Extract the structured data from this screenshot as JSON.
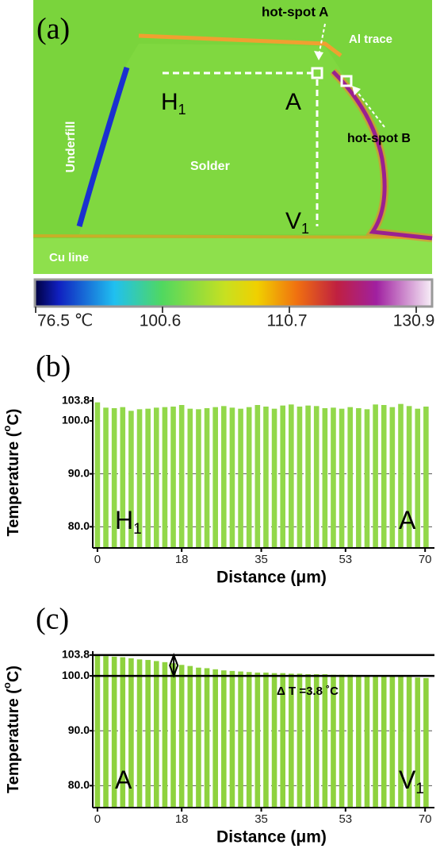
{
  "image_panel": {
    "panel_label": "(a)",
    "labels": {
      "hot_spot_a": "hot-spot A",
      "al_trace": "Al trace",
      "h1": {
        "text": "H",
        "sub": "1"
      },
      "a": "A",
      "hot_spot_b": "hot-spot B",
      "underfill": "Underfill",
      "solder": "Solder",
      "v1": {
        "text": "V",
        "sub": "1"
      },
      "cu_line": "Cu line"
    },
    "colorbar_ticks": [
      {
        "value": 76.5,
        "label": "76.5 ℃"
      },
      100.6,
      110.7,
      130.9
    ]
  },
  "chart_data": [
    {
      "type": "bar",
      "panel_label": "(b)",
      "x_label": "Distance (μm)",
      "y_label": [
        "Temperature (",
        "o",
        "C)"
      ],
      "annotations": [
        {
          "text": "H",
          "sub": "1"
        },
        {
          "text": "A"
        }
      ],
      "x": [
        0,
        1.8,
        3.6,
        5.4,
        7.2,
        9,
        10.8,
        12.6,
        14.4,
        16.2,
        18,
        19.8,
        21.6,
        23.4,
        25.2,
        27,
        28.8,
        30.6,
        32.4,
        34.2,
        36,
        37.8,
        39.6,
        41.4,
        43.2,
        45,
        46.8,
        48.6,
        50.4,
        52.2,
        54,
        55.8,
        57.6,
        59.4,
        61.2,
        63,
        64.8,
        66.6,
        68.4,
        70.2
      ],
      "values": [
        103.5,
        102.5,
        102.4,
        102.6,
        101.9,
        102.2,
        102.3,
        102.5,
        102.6,
        102.7,
        103.0,
        102.3,
        102.2,
        102.4,
        102.6,
        102.8,
        102.5,
        102.3,
        102.6,
        103.0,
        102.7,
        102.3,
        102.9,
        103.1,
        102.7,
        102.9,
        102.8,
        102.4,
        102.5,
        102.3,
        102.6,
        102.4,
        102.2,
        103.1,
        103.0,
        102.6,
        103.2,
        102.8,
        102.3,
        102.7
      ],
      "color": "#92d84a",
      "xlim": [
        -1,
        72
      ],
      "xticks": [
        0,
        18,
        35,
        53,
        70
      ],
      "ylim": [
        76,
        104.5
      ],
      "yticks": [
        {
          "value": 80,
          "label": "80.0"
        },
        {
          "value": 90,
          "label": "90.0"
        },
        {
          "value": 100,
          "label": "100.0"
        },
        {
          "value": 103.8,
          "label": "103.8"
        }
      ],
      "grid": true
    },
    {
      "type": "bar",
      "panel_label": "(c)",
      "x_label": "Distance (μm)",
      "y_label": [
        "Temperature (",
        "o",
        "C)"
      ],
      "annotations": [
        {
          "text": "A"
        },
        {
          "text": "V",
          "sub": "1"
        }
      ],
      "delta_label": "Δ T =3.8 ˚C",
      "reference_lines": [
        103.8,
        100
      ],
      "x": [
        0,
        1.8,
        3.6,
        5.4,
        7.2,
        9,
        10.8,
        12.6,
        14.4,
        16.2,
        18,
        19.8,
        21.6,
        23.4,
        25.2,
        27,
        28.8,
        30.6,
        32.4,
        34.2,
        36,
        37.8,
        39.6,
        41.4,
        43.2,
        45,
        46.8,
        48.6,
        50.4,
        52.2,
        54,
        55.8,
        57.6,
        59.4,
        61.2,
        63,
        64.8,
        66.6,
        68.4,
        70.2
      ],
      "values": [
        103.8,
        103.6,
        103.5,
        103.4,
        103.2,
        103.0,
        102.9,
        102.7,
        102.5,
        102.3,
        102.0,
        101.8,
        101.5,
        101.4,
        101.2,
        101.0,
        100.9,
        100.8,
        100.7,
        100.6,
        100.6,
        100.5,
        100.5,
        100.4,
        100.4,
        100.3,
        100.3,
        100.3,
        100.2,
        100.2,
        100.2,
        100.1,
        100.1,
        100.1,
        100.0,
        100.0,
        99.9,
        99.8,
        99.7,
        99.6
      ],
      "color": "#8ed23e",
      "xlim": [
        -1,
        72
      ],
      "xticks": [
        0,
        18,
        35,
        53,
        70
      ],
      "ylim": [
        76,
        104.5
      ],
      "yticks": [
        {
          "value": 80,
          "label": "80.0"
        },
        {
          "value": 90,
          "label": "90.0"
        },
        {
          "value": 100,
          "label": "100.0"
        },
        {
          "value": 103.8,
          "label": "103.8"
        }
      ],
      "grid": true
    }
  ]
}
